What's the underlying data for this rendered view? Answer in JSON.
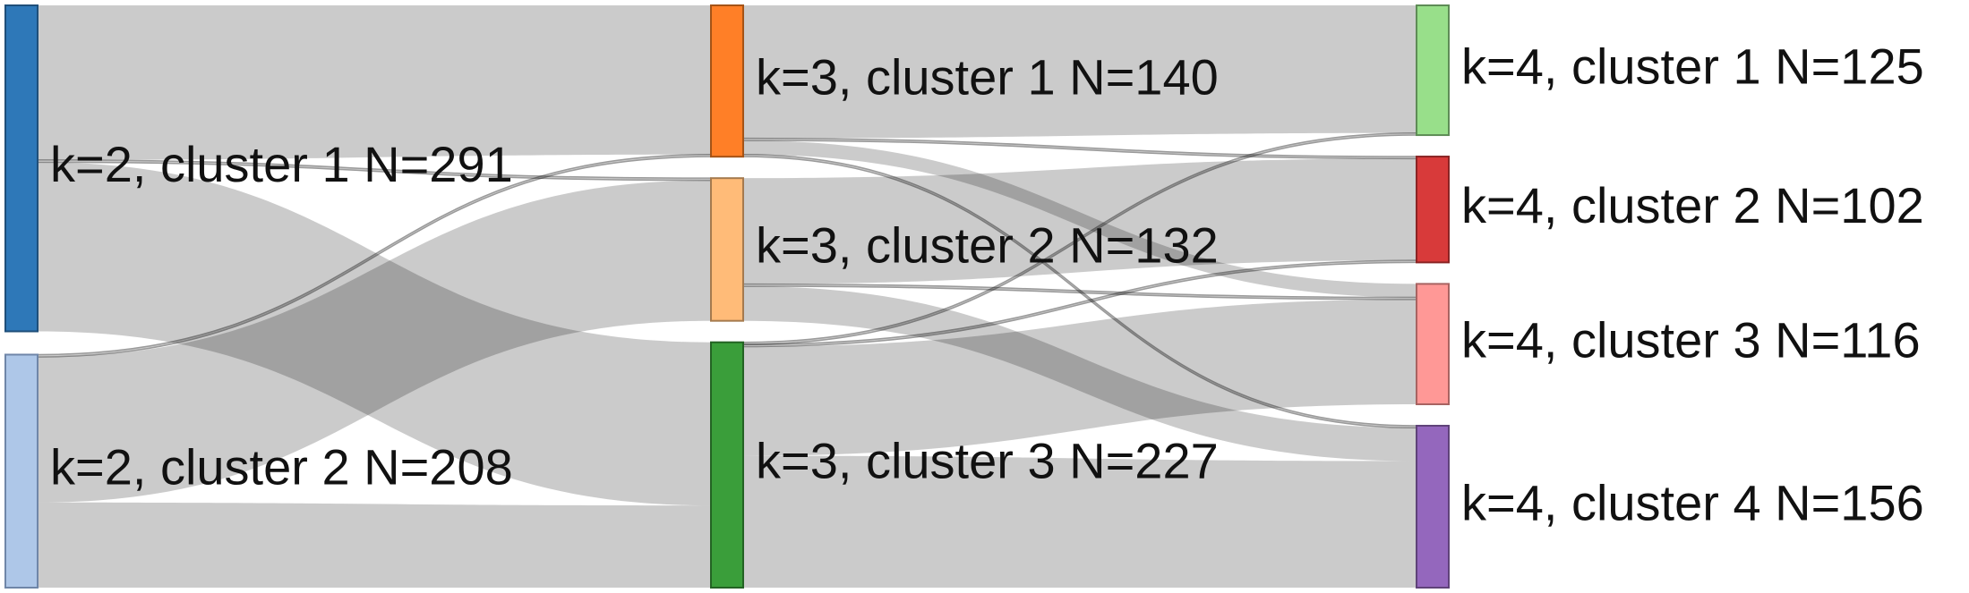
{
  "chart_data": {
    "type": "sankey",
    "link_color": "#c8c8c8",
    "columns": [
      {
        "nodes": [
          {
            "id": "k2c1",
            "label": "k=2, cluster 1 N=291",
            "value": 291,
            "color": "#2e78b8",
            "stroke": "#1f4f7a"
          },
          {
            "id": "k2c2",
            "label": "k=2, cluster 2 N=208",
            "value": 208,
            "color": "#aec7e8",
            "stroke": "#6f86a8"
          }
        ]
      },
      {
        "nodes": [
          {
            "id": "k3c1",
            "label": "k=3, cluster 1 N=140",
            "value": 140,
            "color": "#ff7f27",
            "stroke": "#a55316"
          },
          {
            "id": "k3c2",
            "label": "k=3, cluster 2 N=132",
            "value": 132,
            "color": "#ffbb78",
            "stroke": "#a57a4e"
          },
          {
            "id": "k3c3",
            "label": "k=3, cluster 3 N=227",
            "value": 227,
            "color": "#3a9e3a",
            "stroke": "#236323"
          }
        ]
      },
      {
        "nodes": [
          {
            "id": "k4c1",
            "label": "k=4, cluster 1 N=125",
            "value": 125,
            "color": "#98df8a",
            "stroke": "#5e8c56"
          },
          {
            "id": "k4c2",
            "label": "k=4, cluster 2 N=102",
            "value": 102,
            "color": "#d83a3a",
            "stroke": "#8a2424"
          },
          {
            "id": "k4c3",
            "label": "k=4, cluster 3 N=116",
            "value": 116,
            "color": "#ff9896",
            "stroke": "#a86361"
          },
          {
            "id": "k4c4",
            "label": "k=4, cluster 4 N=156",
            "value": 156,
            "color": "#9467bd",
            "stroke": "#5f4279"
          }
        ]
      }
    ],
    "links": [
      {
        "source": "k2c1",
        "target": "k3c1",
        "value": 138
      },
      {
        "source": "k2c1",
        "target": "k3c2",
        "value": 2
      },
      {
        "source": "k2c1",
        "target": "k3c3",
        "value": 151
      },
      {
        "source": "k2c2",
        "target": "k3c1",
        "value": 2
      },
      {
        "source": "k2c2",
        "target": "k3c2",
        "value": 130
      },
      {
        "source": "k2c2",
        "target": "k3c3",
        "value": 76
      },
      {
        "source": "k3c1",
        "target": "k4c1",
        "value": 123
      },
      {
        "source": "k3c1",
        "target": "k4c2",
        "value": 2
      },
      {
        "source": "k3c1",
        "target": "k4c3",
        "value": 13
      },
      {
        "source": "k3c1",
        "target": "k4c4",
        "value": 2
      },
      {
        "source": "k3c2",
        "target": "k4c2",
        "value": 98
      },
      {
        "source": "k3c2",
        "target": "k4c3",
        "value": 2
      },
      {
        "source": "k3c2",
        "target": "k4c4",
        "value": 32
      },
      {
        "source": "k3c3",
        "target": "k4c1",
        "value": 2
      },
      {
        "source": "k3c3",
        "target": "k4c2",
        "value": 2
      },
      {
        "source": "k3c3",
        "target": "k4c3",
        "value": 101
      },
      {
        "source": "k3c3",
        "target": "k4c4",
        "value": 122
      }
    ]
  }
}
